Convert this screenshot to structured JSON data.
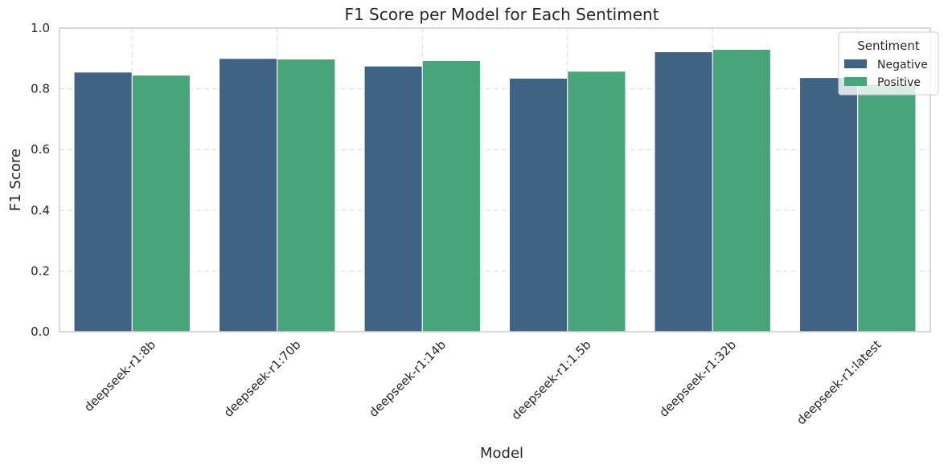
{
  "chart_data": {
    "type": "bar",
    "title": "F1 Score per Model for Each Sentiment",
    "xlabel": "Model",
    "ylabel": "F1 Score",
    "ylim": [
      0,
      1.0
    ],
    "yticks": [
      0.0,
      0.2,
      0.4,
      0.6,
      0.8,
      1.0
    ],
    "ytick_labels": [
      "0.0",
      "0.2",
      "0.4",
      "0.6",
      "0.8",
      "1.0"
    ],
    "categories": [
      "deepseek-r1:8b",
      "deepseek-r1:70b",
      "deepseek-r1:14b",
      "deepseek-r1:1.5b",
      "deepseek-r1:32b",
      "deepseek-r1:latest"
    ],
    "legend_title": "Sentiment",
    "legend_position": "top-right",
    "grid": true,
    "series": [
      {
        "name": "Negative",
        "color": "#3e6383",
        "values": [
          0.855,
          0.9,
          0.875,
          0.835,
          0.922,
          0.837
        ]
      },
      {
        "name": "Positive",
        "color": "#47a579",
        "values": [
          0.845,
          0.898,
          0.893,
          0.858,
          0.93,
          0.815
        ]
      }
    ]
  }
}
